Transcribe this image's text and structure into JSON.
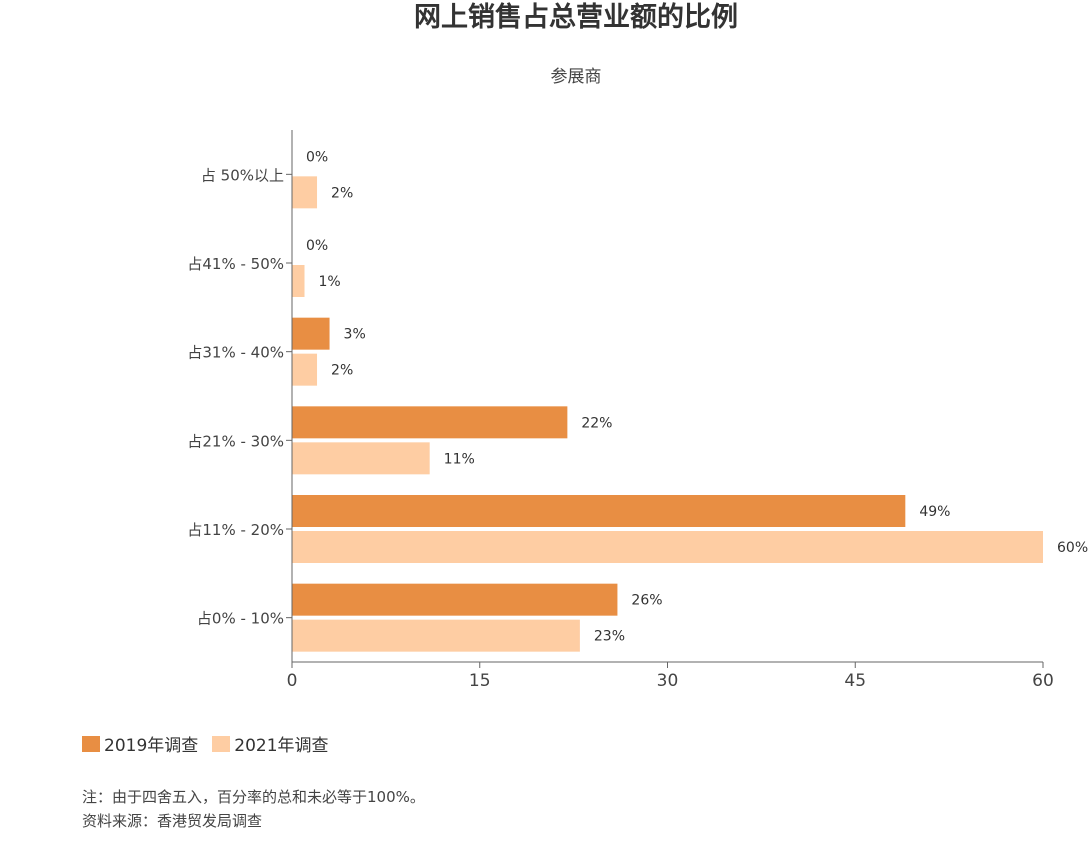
{
  "header": {
    "title": "网上销售占总营业额的比例",
    "subtitle": "参展商"
  },
  "legend": {
    "items": [
      {
        "label": "2019年调查",
        "color": "#E88E43"
      },
      {
        "label": "2021年调查",
        "color": "#FECDA3"
      }
    ]
  },
  "notes": {
    "note": "注：由于四舍五入，百分率的总和未必等于100%。",
    "source": "资料来源：香港贸发局调查"
  },
  "chart_data": {
    "type": "bar",
    "orientation": "horizontal",
    "title": "网上销售占总营业额的比例",
    "subtitle": "参展商",
    "categories": [
      "占 50%以上",
      "占41% - 50%",
      "占31% - 40%",
      "占21% - 30%",
      "占11% - 20%",
      "占0% - 10%"
    ],
    "series": [
      {
        "name": "2019年调查",
        "color": "#E88E43",
        "values": [
          0,
          0,
          3,
          22,
          49,
          26
        ],
        "labels": [
          "0%",
          "0%",
          "3%",
          "22%",
          "49%",
          "26%"
        ]
      },
      {
        "name": "2021年调查",
        "color": "#FECDA3",
        "values": [
          2,
          1,
          2,
          11,
          60,
          23
        ],
        "labels": [
          "2%",
          "1%",
          "2%",
          "11%",
          "60%",
          "23%"
        ]
      }
    ],
    "xlabel": "",
    "ylabel": "",
    "xlim": [
      0,
      60
    ],
    "xticks": [
      0,
      15,
      30,
      45,
      60
    ],
    "grid": false,
    "legend_position": "bottom-left",
    "unit": "%"
  }
}
